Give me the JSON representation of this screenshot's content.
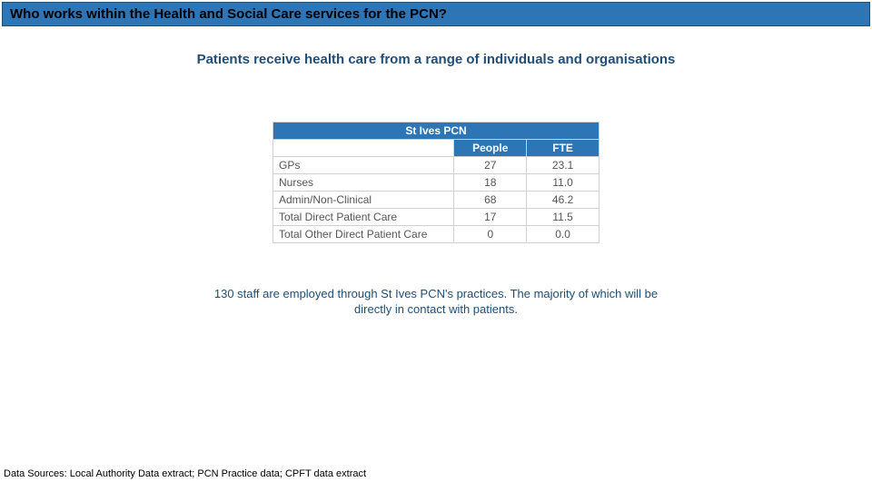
{
  "header": {
    "title": "Who works within the Health and Social Care services for the PCN?",
    "title_bg": "#2e75b6",
    "title_border": "#1f4e79"
  },
  "subtitle": "Patients receive health care from a range of individuals and organisations",
  "table": {
    "title": "St Ives PCN",
    "header_bg": "#2e75b6",
    "header_fg": "#ffffff",
    "border_color": "#d0d0d0",
    "columns": [
      "",
      "People",
      "FTE"
    ],
    "rows": [
      {
        "label": "GPs",
        "people": "27",
        "fte": "23.1"
      },
      {
        "label": "Nurses",
        "people": "18",
        "fte": "11.0"
      },
      {
        "label": "Admin/Non-Clinical",
        "people": "68",
        "fte": "46.2"
      },
      {
        "label": "Total Direct Patient Care",
        "people": "17",
        "fte": "11.5"
      },
      {
        "label": "Total Other Direct Patient Care",
        "people": "0",
        "fte": "0.0"
      }
    ]
  },
  "caption": "130 staff are employed through St Ives PCN's practices. The majority of which will be directly in contact with patients.",
  "footer": "Data Sources: Local Authority Data extract; PCN Practice data; CPFT data extract",
  "colors": {
    "accent": "#2e75b6",
    "dark_accent": "#1f4e79",
    "text_muted": "#555555",
    "background": "#ffffff"
  }
}
